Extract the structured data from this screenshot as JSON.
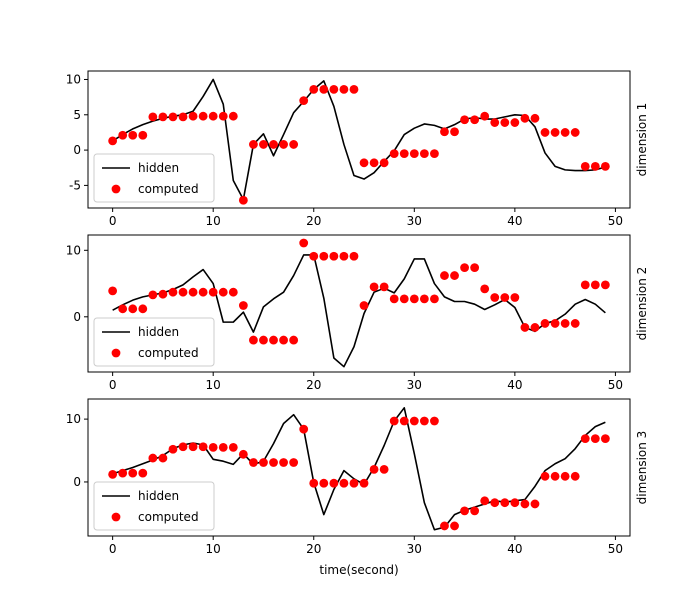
{
  "chart_data": [
    {
      "type": "line",
      "right_label": "dimension 1",
      "xlabel": "",
      "xlim": [
        -2.45,
        51.45
      ],
      "ylim": [
        -8.2,
        11.2
      ],
      "xticks": [
        0,
        10,
        20,
        30,
        40,
        50
      ],
      "yticks": [
        -5,
        0,
        5,
        10
      ],
      "legend": {
        "position": "lower-left",
        "entries": [
          "hidden",
          "computed"
        ]
      },
      "series": [
        {
          "name": "hidden",
          "kind": "line",
          "color": "#000000",
          "x": [
            0,
            1,
            2,
            3,
            4,
            5,
            6,
            7,
            8,
            9,
            10,
            11,
            12,
            13,
            14,
            15,
            16,
            17,
            18,
            19,
            20,
            21,
            22,
            23,
            24,
            25,
            26,
            27,
            28,
            29,
            30,
            31,
            32,
            33,
            34,
            35,
            36,
            37,
            38,
            39,
            40,
            41,
            42,
            43,
            44,
            45,
            46,
            47,
            48,
            49
          ],
          "y": [
            1.3,
            2.2,
            3.0,
            3.6,
            4.1,
            4.5,
            4.8,
            5.0,
            5.5,
            7.6,
            10.0,
            6.5,
            -4.3,
            -7.0,
            0.8,
            2.3,
            -0.8,
            2.2,
            5.3,
            6.9,
            8.6,
            9.8,
            6.2,
            0.8,
            -3.6,
            -4.1,
            -3.2,
            -1.6,
            -0.1,
            2.2,
            3.1,
            3.7,
            3.5,
            3.0,
            3.6,
            4.4,
            4.6,
            4.4,
            4.4,
            4.7,
            5.0,
            4.9,
            3.3,
            -0.4,
            -2.3,
            -2.8,
            -2.9,
            -2.9,
            -2.8,
            -2.4
          ]
        },
        {
          "name": "computed",
          "kind": "scatter",
          "color": "#ff0000",
          "x": [
            0,
            1,
            2,
            3,
            4,
            5,
            6,
            7,
            8,
            9,
            10,
            11,
            12,
            13,
            14,
            15,
            16,
            17,
            18,
            19,
            20,
            21,
            22,
            23,
            24,
            25,
            26,
            27,
            28,
            29,
            30,
            31,
            32,
            33,
            34,
            35,
            36,
            37,
            38,
            39,
            40,
            41,
            42,
            43,
            44,
            45,
            46,
            47,
            48,
            49
          ],
          "y": [
            1.3,
            2.1,
            2.1,
            2.1,
            4.7,
            4.7,
            4.7,
            4.7,
            4.8,
            4.8,
            4.8,
            4.8,
            4.8,
            -7.1,
            0.8,
            0.8,
            0.8,
            0.8,
            0.8,
            7.0,
            8.6,
            8.6,
            8.6,
            8.6,
            8.6,
            -1.8,
            -1.8,
            -1.8,
            -0.5,
            -0.5,
            -0.5,
            -0.5,
            -0.5,
            2.6,
            2.6,
            4.3,
            4.3,
            4.8,
            3.9,
            3.9,
            3.9,
            4.5,
            4.5,
            2.5,
            2.5,
            2.5,
            2.5,
            -2.3,
            -2.3,
            -2.3
          ]
        }
      ]
    },
    {
      "type": "line",
      "right_label": "dimension 2",
      "xlabel": "",
      "xlim": [
        -2.45,
        51.45
      ],
      "ylim": [
        -8.3,
        12.3
      ],
      "xticks": [
        0,
        10,
        20,
        30,
        40,
        50
      ],
      "yticks": [
        0,
        10
      ],
      "legend": {
        "position": "lower-left",
        "entries": [
          "hidden",
          "computed"
        ]
      },
      "series": [
        {
          "name": "hidden",
          "kind": "line",
          "color": "#000000",
          "x": [
            0,
            1,
            2,
            3,
            4,
            5,
            6,
            7,
            8,
            9,
            10,
            11,
            12,
            13,
            14,
            15,
            16,
            17,
            18,
            19,
            20,
            21,
            22,
            23,
            24,
            25,
            26,
            27,
            28,
            29,
            30,
            31,
            32,
            33,
            34,
            35,
            36,
            37,
            38,
            39,
            40,
            41,
            42,
            43,
            44,
            45,
            46,
            47,
            48,
            49
          ],
          "y": [
            1.0,
            1.8,
            2.5,
            3.0,
            3.3,
            3.6,
            4.1,
            4.8,
            6.0,
            7.1,
            5.0,
            -0.8,
            -0.8,
            0.7,
            -2.3,
            1.5,
            2.7,
            3.7,
            6.2,
            9.3,
            9.3,
            2.8,
            -6.2,
            -7.5,
            -4.5,
            0.5,
            3.7,
            4.3,
            3.6,
            5.7,
            8.7,
            8.7,
            5.0,
            3.0,
            2.3,
            2.3,
            1.9,
            1.1,
            1.8,
            2.6,
            1.4,
            -1.6,
            -2.2,
            -1.0,
            -0.6,
            0.4,
            1.9,
            2.6,
            1.9,
            0.6
          ]
        },
        {
          "name": "computed",
          "kind": "scatter",
          "color": "#ff0000",
          "x": [
            0,
            1,
            2,
            3,
            4,
            5,
            6,
            7,
            8,
            9,
            10,
            11,
            12,
            13,
            14,
            15,
            16,
            17,
            18,
            19,
            20,
            21,
            22,
            23,
            24,
            25,
            26,
            27,
            28,
            29,
            30,
            31,
            32,
            33,
            34,
            35,
            36,
            37,
            38,
            39,
            40,
            41,
            42,
            43,
            44,
            45,
            46,
            47,
            48,
            49
          ],
          "y": [
            3.9,
            1.2,
            1.2,
            1.2,
            3.3,
            3.4,
            3.7,
            3.7,
            3.7,
            3.7,
            3.7,
            3.7,
            3.7,
            1.7,
            -3.5,
            -3.5,
            -3.5,
            -3.5,
            -3.5,
            11.1,
            9.1,
            9.1,
            9.1,
            9.1,
            9.1,
            1.7,
            4.5,
            4.5,
            2.7,
            2.7,
            2.7,
            2.7,
            2.7,
            6.2,
            6.2,
            7.4,
            7.4,
            4.2,
            2.9,
            2.9,
            2.9,
            -1.6,
            -1.6,
            -1.0,
            -1.0,
            -1.0,
            -1.0,
            4.8,
            4.8,
            4.8
          ]
        }
      ]
    },
    {
      "type": "line",
      "right_label": "dimension 3",
      "xlabel": "time(second)",
      "xlim": [
        -2.45,
        51.45
      ],
      "ylim": [
        -8.6,
        13.2
      ],
      "xticks": [
        0,
        10,
        20,
        30,
        40,
        50
      ],
      "yticks": [
        0,
        10
      ],
      "legend": {
        "position": "lower-left",
        "entries": [
          "hidden",
          "computed"
        ]
      },
      "series": [
        {
          "name": "hidden",
          "kind": "line",
          "color": "#000000",
          "x": [
            0,
            1,
            2,
            3,
            4,
            5,
            6,
            7,
            8,
            9,
            10,
            11,
            12,
            13,
            14,
            15,
            16,
            17,
            18,
            19,
            20,
            21,
            22,
            23,
            24,
            25,
            26,
            27,
            28,
            29,
            30,
            31,
            32,
            33,
            34,
            35,
            36,
            37,
            38,
            39,
            40,
            41,
            42,
            43,
            44,
            45,
            46,
            47,
            48,
            49
          ],
          "y": [
            1.3,
            1.8,
            2.3,
            2.9,
            3.5,
            4.2,
            5.3,
            5.9,
            6.2,
            5.9,
            3.6,
            3.3,
            2.8,
            4.5,
            2.8,
            3.3,
            6.1,
            9.3,
            10.7,
            8.4,
            -0.1,
            -5.2,
            -1.2,
            1.8,
            0.5,
            -0.4,
            2.3,
            5.8,
            9.7,
            11.8,
            4.5,
            -3.3,
            -7.6,
            -7.2,
            -5.2,
            -4.5,
            -4.0,
            -3.5,
            -3.0,
            -3.2,
            -3.0,
            -2.8,
            -0.7,
            1.8,
            2.9,
            3.7,
            5.3,
            7.4,
            8.8,
            9.5
          ]
        },
        {
          "name": "computed",
          "kind": "scatter",
          "color": "#ff0000",
          "x": [
            0,
            1,
            2,
            3,
            4,
            5,
            6,
            7,
            8,
            9,
            10,
            11,
            12,
            13,
            14,
            15,
            16,
            17,
            18,
            19,
            20,
            21,
            22,
            23,
            24,
            25,
            26,
            27,
            28,
            29,
            30,
            31,
            32,
            33,
            34,
            35,
            36,
            37,
            38,
            39,
            40,
            41,
            42,
            43,
            44,
            45,
            46,
            47,
            48,
            49
          ],
          "y": [
            1.2,
            1.4,
            1.4,
            1.4,
            3.8,
            3.8,
            5.2,
            5.6,
            5.6,
            5.6,
            5.5,
            5.5,
            5.5,
            4.4,
            3.1,
            3.1,
            3.1,
            3.1,
            3.1,
            8.4,
            -0.2,
            -0.2,
            -0.2,
            -0.2,
            -0.2,
            -0.2,
            2.0,
            2.0,
            9.7,
            9.7,
            9.7,
            9.7,
            9.7,
            -7.0,
            -7.0,
            -4.6,
            -4.6,
            -3.0,
            -3.3,
            -3.3,
            -3.3,
            -3.5,
            -3.5,
            0.9,
            0.9,
            0.9,
            0.9,
            6.9,
            6.9,
            6.9
          ]
        }
      ]
    }
  ]
}
